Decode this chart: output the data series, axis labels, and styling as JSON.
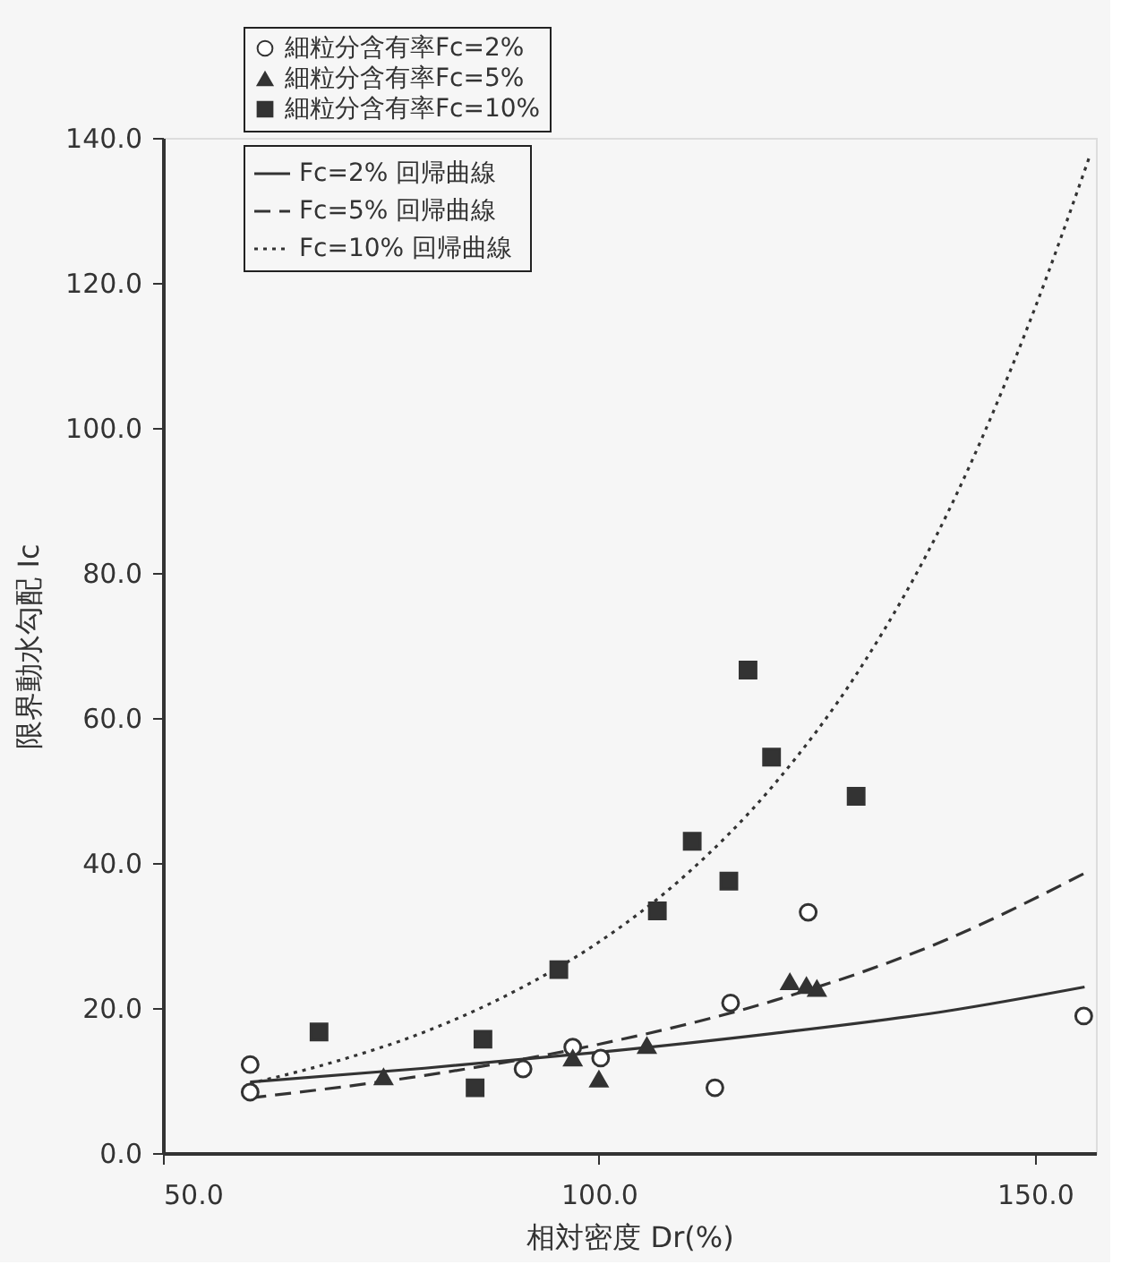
{
  "chart_data": {
    "type": "scatter",
    "xlabel": "相対密度 Dr(%)",
    "ylabel": "限界動水勾配 Ic",
    "xlim": [
      50,
      157
    ],
    "xticks": [
      {
        "value": 50,
        "label": "50.0"
      },
      {
        "value": 100,
        "label": "100.0"
      },
      {
        "value": 150,
        "label": "150.0"
      }
    ],
    "ylim": [
      0,
      140
    ],
    "yticks": [
      {
        "value": 0,
        "label": "0.0"
      },
      {
        "value": 20,
        "label": "20.0"
      },
      {
        "value": 40,
        "label": "40.0"
      },
      {
        "value": 60,
        "label": "60.0"
      },
      {
        "value": 80,
        "label": "80.0"
      },
      {
        "value": 100,
        "label": "100.0"
      },
      {
        "value": 120,
        "label": "120.0"
      },
      {
        "value": 140,
        "label": "140.0"
      }
    ],
    "grid": false,
    "legend": "top",
    "series": [
      {
        "name": "細粒分含有率Fc=2%",
        "marker": "circle",
        "color": "#333333",
        "x": [
          60.0,
          60.0,
          91.3,
          97.0,
          100.2,
          113.3,
          115.1,
          124.0,
          155.6
        ],
        "values": [
          12.2,
          8.4,
          11.6,
          14.6,
          13.1,
          9.0,
          20.7,
          33.2,
          18.9
        ]
      },
      {
        "name": "細粒分含有率Fc=5%",
        "marker": "triangle",
        "color": "#333333",
        "x": [
          75.3,
          97.0,
          100.0,
          105.5,
          121.9,
          123.8,
          125.0
        ],
        "values": [
          10.5,
          13.1,
          10.2,
          14.8,
          23.6,
          23.1,
          22.7
        ]
      },
      {
        "name": "細粒分含有率Fc=10%",
        "marker": "square",
        "color": "#333333",
        "x": [
          67.9,
          85.8,
          86.7,
          95.4,
          106.7,
          114.9,
          110.7,
          129.5,
          117.1,
          119.8
        ],
        "values": [
          16.7,
          9.0,
          15.7,
          25.3,
          33.4,
          37.5,
          43.0,
          49.2,
          66.6,
          54.6
        ]
      },
      {
        "name": "Fc=2%  回帰曲線",
        "type": "line",
        "line_style": "solid",
        "color": "#333333",
        "x": [
          60,
          80,
          100,
          120,
          140,
          155.7
        ],
        "values": [
          9.8,
          11.7,
          13.9,
          16.5,
          19.6,
          22.9
        ]
      },
      {
        "name": "Fc=5%  回帰曲線",
        "type": "line",
        "line_style": "dashed",
        "color": "#333333",
        "x": [
          60,
          80,
          100,
          120,
          140,
          156.2
        ],
        "values": [
          7.6,
          10.7,
          15.0,
          21.0,
          29.5,
          38.9
        ]
      },
      {
        "name": "Fc=10%  回帰曲線",
        "type": "line",
        "line_style": "dotted",
        "color": "#333333",
        "x": [
          60,
          70,
          80,
          90,
          100,
          110,
          120,
          130,
          140,
          150,
          156.2
        ],
        "values": [
          9.6,
          12.7,
          16.7,
          22.1,
          29.1,
          38.4,
          50.7,
          66.9,
          88.3,
          116.5,
          137.2
        ]
      }
    ]
  }
}
